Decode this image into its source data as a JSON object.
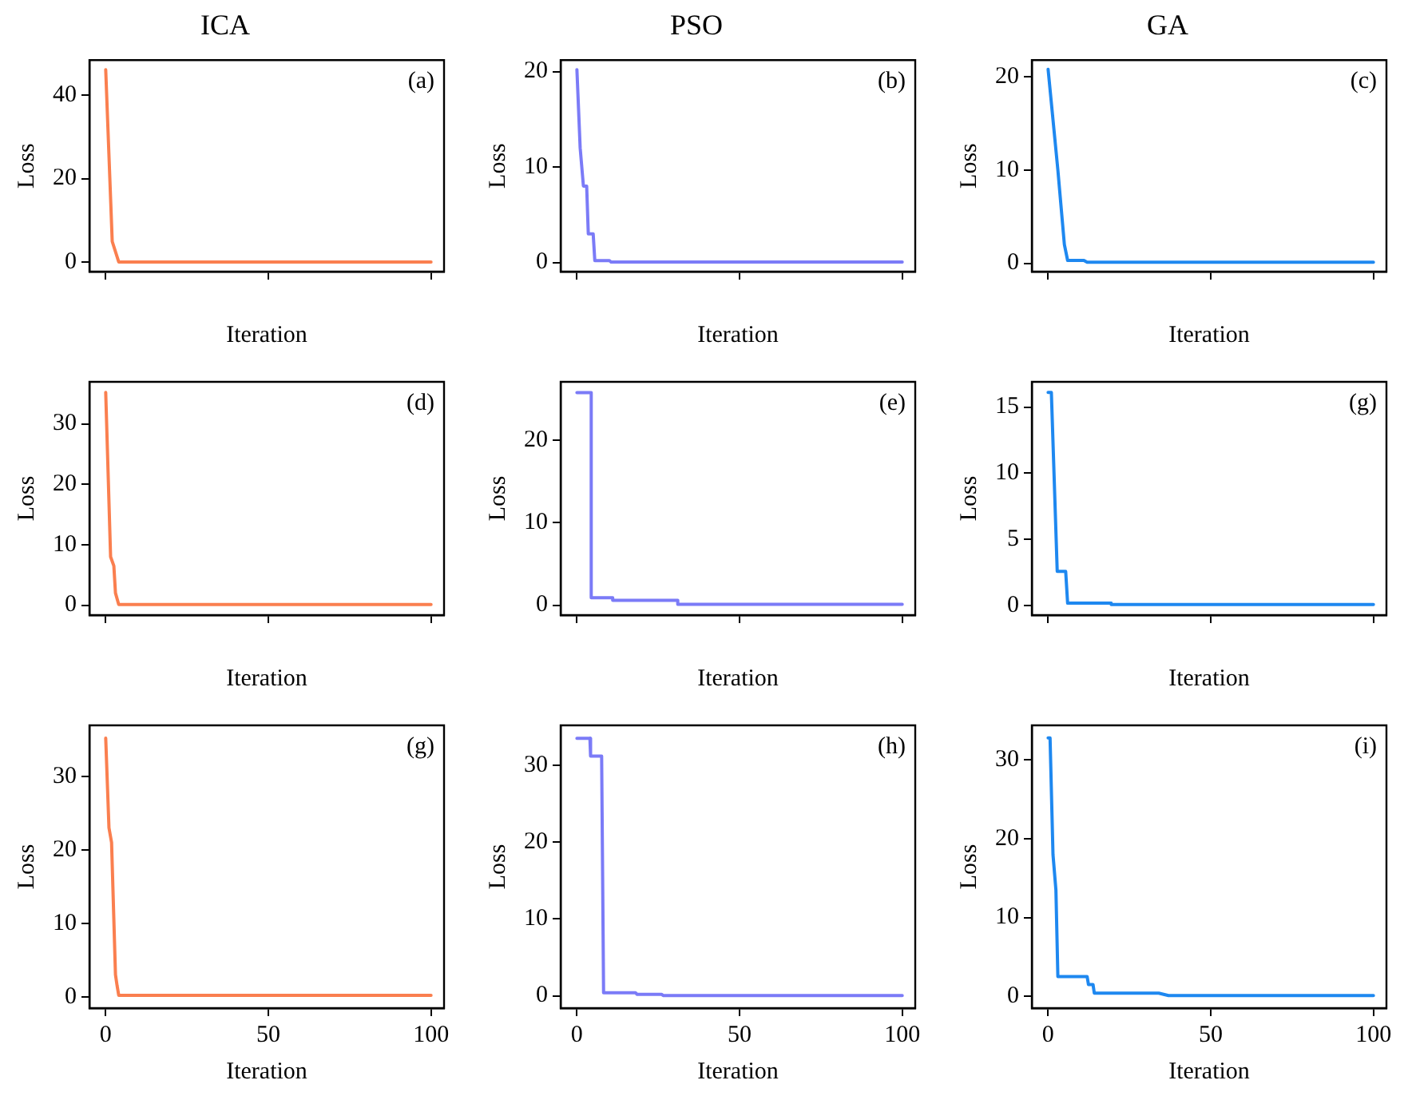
{
  "chart_data": [
    {
      "type": "line",
      "title": "ICA",
      "xlabel": "Iteration",
      "ylabel": "Loss",
      "annotations": [
        "(a)"
      ],
      "tick_labels": "y",
      "xlim": [
        -5,
        104
      ],
      "xticks": [
        0,
        50,
        100
      ],
      "ylim": [
        -2.2,
        48.3
      ],
      "yticks": [
        0,
        20,
        40
      ],
      "series": [
        {
          "color": "#fa7f4f",
          "x": [
            0,
            2,
            4,
            100
          ],
          "values": [
            46,
            5,
            0.1,
            0.1
          ]
        }
      ]
    },
    {
      "type": "line",
      "title": "PSO",
      "xlabel": "Iteration",
      "ylabel": "Loss",
      "annotations": [
        "(b)"
      ],
      "tick_labels": "y",
      "xlim": [
        -5,
        104
      ],
      "xticks": [
        0,
        50,
        100
      ],
      "ylim": [
        -0.96,
        21.2
      ],
      "yticks": [
        0,
        10,
        20
      ],
      "series": [
        {
          "color": "#7b7bf7",
          "x": [
            0,
            1,
            2,
            3,
            3.5,
            5,
            5.5,
            10,
            10.5,
            100
          ],
          "values": [
            20.2,
            12,
            8,
            8,
            3,
            3,
            0.2,
            0.2,
            0.05,
            0.05
          ]
        }
      ]
    },
    {
      "type": "line",
      "title": "GA",
      "xlabel": "Iteration",
      "ylabel": "Loss",
      "annotations": [
        "(c)"
      ],
      "tick_labels": "y",
      "xlim": [
        -5,
        104
      ],
      "xticks": [
        0,
        50,
        100
      ],
      "ylim": [
        -0.9,
        21.8
      ],
      "yticks": [
        0,
        10,
        20
      ],
      "series": [
        {
          "color": "#1e88f0",
          "x": [
            0,
            3,
            5,
            6,
            11,
            12,
            100
          ],
          "values": [
            20.8,
            10,
            2,
            0.3,
            0.3,
            0.1,
            0.1
          ]
        }
      ]
    },
    {
      "type": "line",
      "xlabel": "Iteration",
      "ylabel": "Loss",
      "annotations": [
        "(d)"
      ],
      "tick_labels": "y",
      "xlim": [
        -5,
        104
      ],
      "xticks": [
        0,
        50,
        100
      ],
      "ylim": [
        -1.65,
        36.95
      ],
      "yticks": [
        0,
        10,
        20,
        30
      ],
      "series": [
        {
          "color": "#fa7f4f",
          "x": [
            0,
            1.5,
            2.5,
            3,
            4,
            100
          ],
          "values": [
            35.2,
            8,
            6.5,
            2,
            0.1,
            0.1
          ]
        }
      ]
    },
    {
      "type": "line",
      "xlabel": "Iteration",
      "ylabel": "Loss",
      "annotations": [
        "(e)"
      ],
      "tick_labels": "y",
      "xlim": [
        -5,
        104
      ],
      "xticks": [
        0,
        50,
        100
      ],
      "ylim": [
        -1.2,
        27.1
      ],
      "yticks": [
        0,
        10,
        20
      ],
      "series": [
        {
          "color": "#7b7bf7",
          "x": [
            0,
            4.4,
            4.4,
            11,
            11,
            31,
            31,
            100
          ],
          "values": [
            25.8,
            25.8,
            0.9,
            0.9,
            0.6,
            0.6,
            0.1,
            0.1
          ]
        }
      ]
    },
    {
      "type": "line",
      "xlabel": "Iteration",
      "ylabel": "Loss",
      "annotations": [
        "(g)"
      ],
      "tick_labels": "y",
      "xlim": [
        -5,
        104
      ],
      "xticks": [
        0,
        50,
        100
      ],
      "ylim": [
        -0.7,
        16.9
      ],
      "yticks": [
        0,
        5,
        10,
        15
      ],
      "series": [
        {
          "color": "#1e88f0",
          "x": [
            0,
            1,
            2.8,
            5.4,
            6,
            19.4,
            19.4,
            100
          ],
          "values": [
            16.1,
            16.1,
            2.6,
            2.6,
            0.2,
            0.2,
            0.1,
            0.1
          ]
        }
      ]
    },
    {
      "type": "line",
      "xlabel": "Iteration",
      "ylabel": "Loss",
      "annotations": [
        "(g)"
      ],
      "xlim": [
        -5,
        104
      ],
      "xticks": [
        0,
        50,
        100
      ],
      "ylim": [
        -1.55,
        36.95
      ],
      "yticks": [
        0,
        10,
        20,
        30
      ],
      "series": [
        {
          "color": "#fa7f4f",
          "x": [
            0,
            1,
            1.8,
            3,
            3.5,
            4,
            100
          ],
          "values": [
            35.2,
            23,
            21,
            3,
            1.5,
            0.2,
            0.2
          ]
        }
      ]
    },
    {
      "type": "line",
      "xlabel": "Iteration",
      "ylabel": "Loss",
      "annotations": [
        "(h)"
      ],
      "xlim": [
        -5,
        104
      ],
      "xticks": [
        0,
        50,
        100
      ],
      "ylim": [
        -1.6,
        35.2
      ],
      "yticks": [
        0,
        10,
        20,
        30
      ],
      "series": [
        {
          "color": "#7b7bf7",
          "x": [
            0,
            4,
            4.2,
            7.6,
            8.2,
            18,
            18.5,
            26,
            26.5,
            100
          ],
          "values": [
            33.5,
            33.5,
            31.2,
            31.2,
            0.4,
            0.4,
            0.2,
            0.2,
            0.05,
            0.05
          ]
        }
      ]
    },
    {
      "type": "line",
      "xlabel": "Iteration",
      "ylabel": "Loss",
      "annotations": [
        "(i)"
      ],
      "xlim": [
        -5,
        104
      ],
      "xticks": [
        0,
        50,
        100
      ],
      "ylim": [
        -1.5,
        34.4
      ],
      "yticks": [
        0,
        10,
        20,
        30
      ],
      "series": [
        {
          "color": "#1e88f0",
          "x": [
            0,
            0.6,
            1.5,
            2.4,
            3,
            12,
            12.4,
            13.8,
            14.2,
            34,
            37,
            100
          ],
          "values": [
            32.8,
            32.8,
            18,
            13.5,
            2.5,
            2.5,
            1.5,
            1.5,
            0.4,
            0.4,
            0.1,
            0.1
          ]
        }
      ]
    }
  ]
}
